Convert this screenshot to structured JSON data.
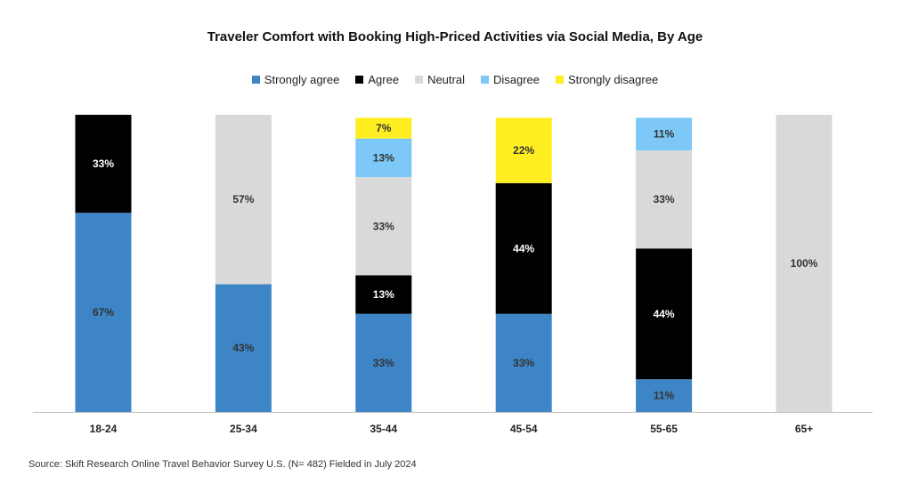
{
  "chart_data": {
    "type": "bar",
    "stacked": true,
    "title": "Traveler Comfort with Booking High-Priced Activities via Social Media, By Age",
    "categories": [
      "18-24",
      "25-34",
      "35-44",
      "45-54",
      "55-65",
      "65+"
    ],
    "series": [
      {
        "name": "Strongly agree",
        "color": "#3d85c6",
        "label_color": "#333333",
        "values": [
          67,
          43,
          33,
          33,
          11,
          0
        ]
      },
      {
        "name": "Agree",
        "color": "#000000",
        "label_color": "#ffffff",
        "values": [
          33,
          0,
          13,
          44,
          44,
          0
        ]
      },
      {
        "name": "Neutral",
        "color": "#d9d9d9",
        "label_color": "#333333",
        "values": [
          0,
          57,
          33,
          0,
          33,
          100
        ]
      },
      {
        "name": "Disagree",
        "color": "#7ec8f7",
        "label_color": "#333333",
        "values": [
          0,
          0,
          13,
          0,
          11,
          0
        ]
      },
      {
        "name": "Strongly disagree",
        "color": "#ffee22",
        "label_color": "#333333",
        "values": [
          0,
          0,
          7,
          22,
          0,
          0
        ]
      }
    ],
    "value_suffix": "%",
    "legend_position": "top",
    "grid": false
  },
  "source": "Source: Skift Research Online Travel Behavior Survey U.S. (N= 482) Fielded in July 2024"
}
